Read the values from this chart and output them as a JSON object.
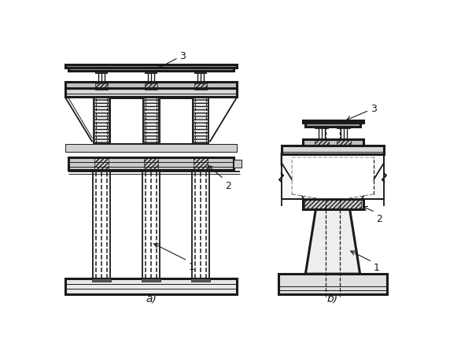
{
  "bg_color": "#ffffff",
  "line_color": "#1a1a1a",
  "fig_width": 6.0,
  "fig_height": 4.5,
  "label_a": "a)",
  "label_b": "b)",
  "labels_1": "1",
  "labels_2": "2",
  "labels_3": "3"
}
